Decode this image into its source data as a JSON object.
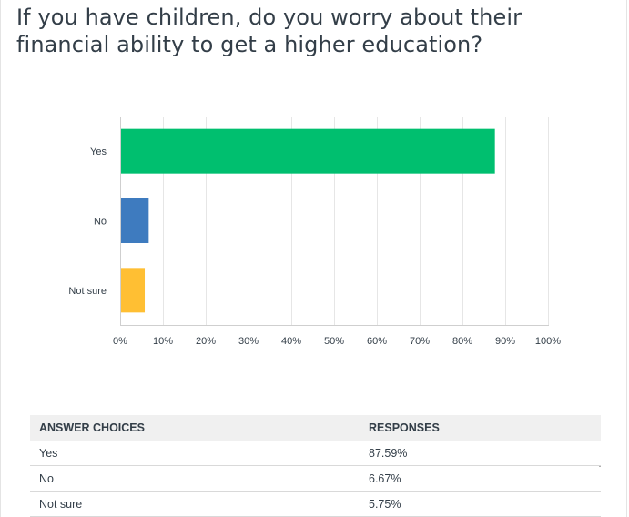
{
  "question": {
    "title": "If you have children, do you worry about their financial ability to get a higher education?"
  },
  "chart_data": {
    "type": "bar",
    "orientation": "horizontal",
    "categories": [
      "Yes",
      "No",
      "Not sure"
    ],
    "values": [
      87.59,
      6.67,
      5.75
    ],
    "colors": [
      "#00bf6f",
      "#3e7bbf",
      "#ffbf33"
    ],
    "xlim": [
      0,
      100
    ],
    "xticks": [
      "0%",
      "10%",
      "20%",
      "30%",
      "40%",
      "50%",
      "60%",
      "70%",
      "80%",
      "90%",
      "100%"
    ],
    "grid": true,
    "legend": "none"
  },
  "table": {
    "headers": [
      "ANSWER CHOICES",
      "RESPONSES"
    ],
    "rows": [
      {
        "choice": "Yes",
        "response": "87.59%"
      },
      {
        "choice": "No",
        "response": "6.67%"
      },
      {
        "choice": "Not sure",
        "response": "5.75%"
      }
    ]
  }
}
